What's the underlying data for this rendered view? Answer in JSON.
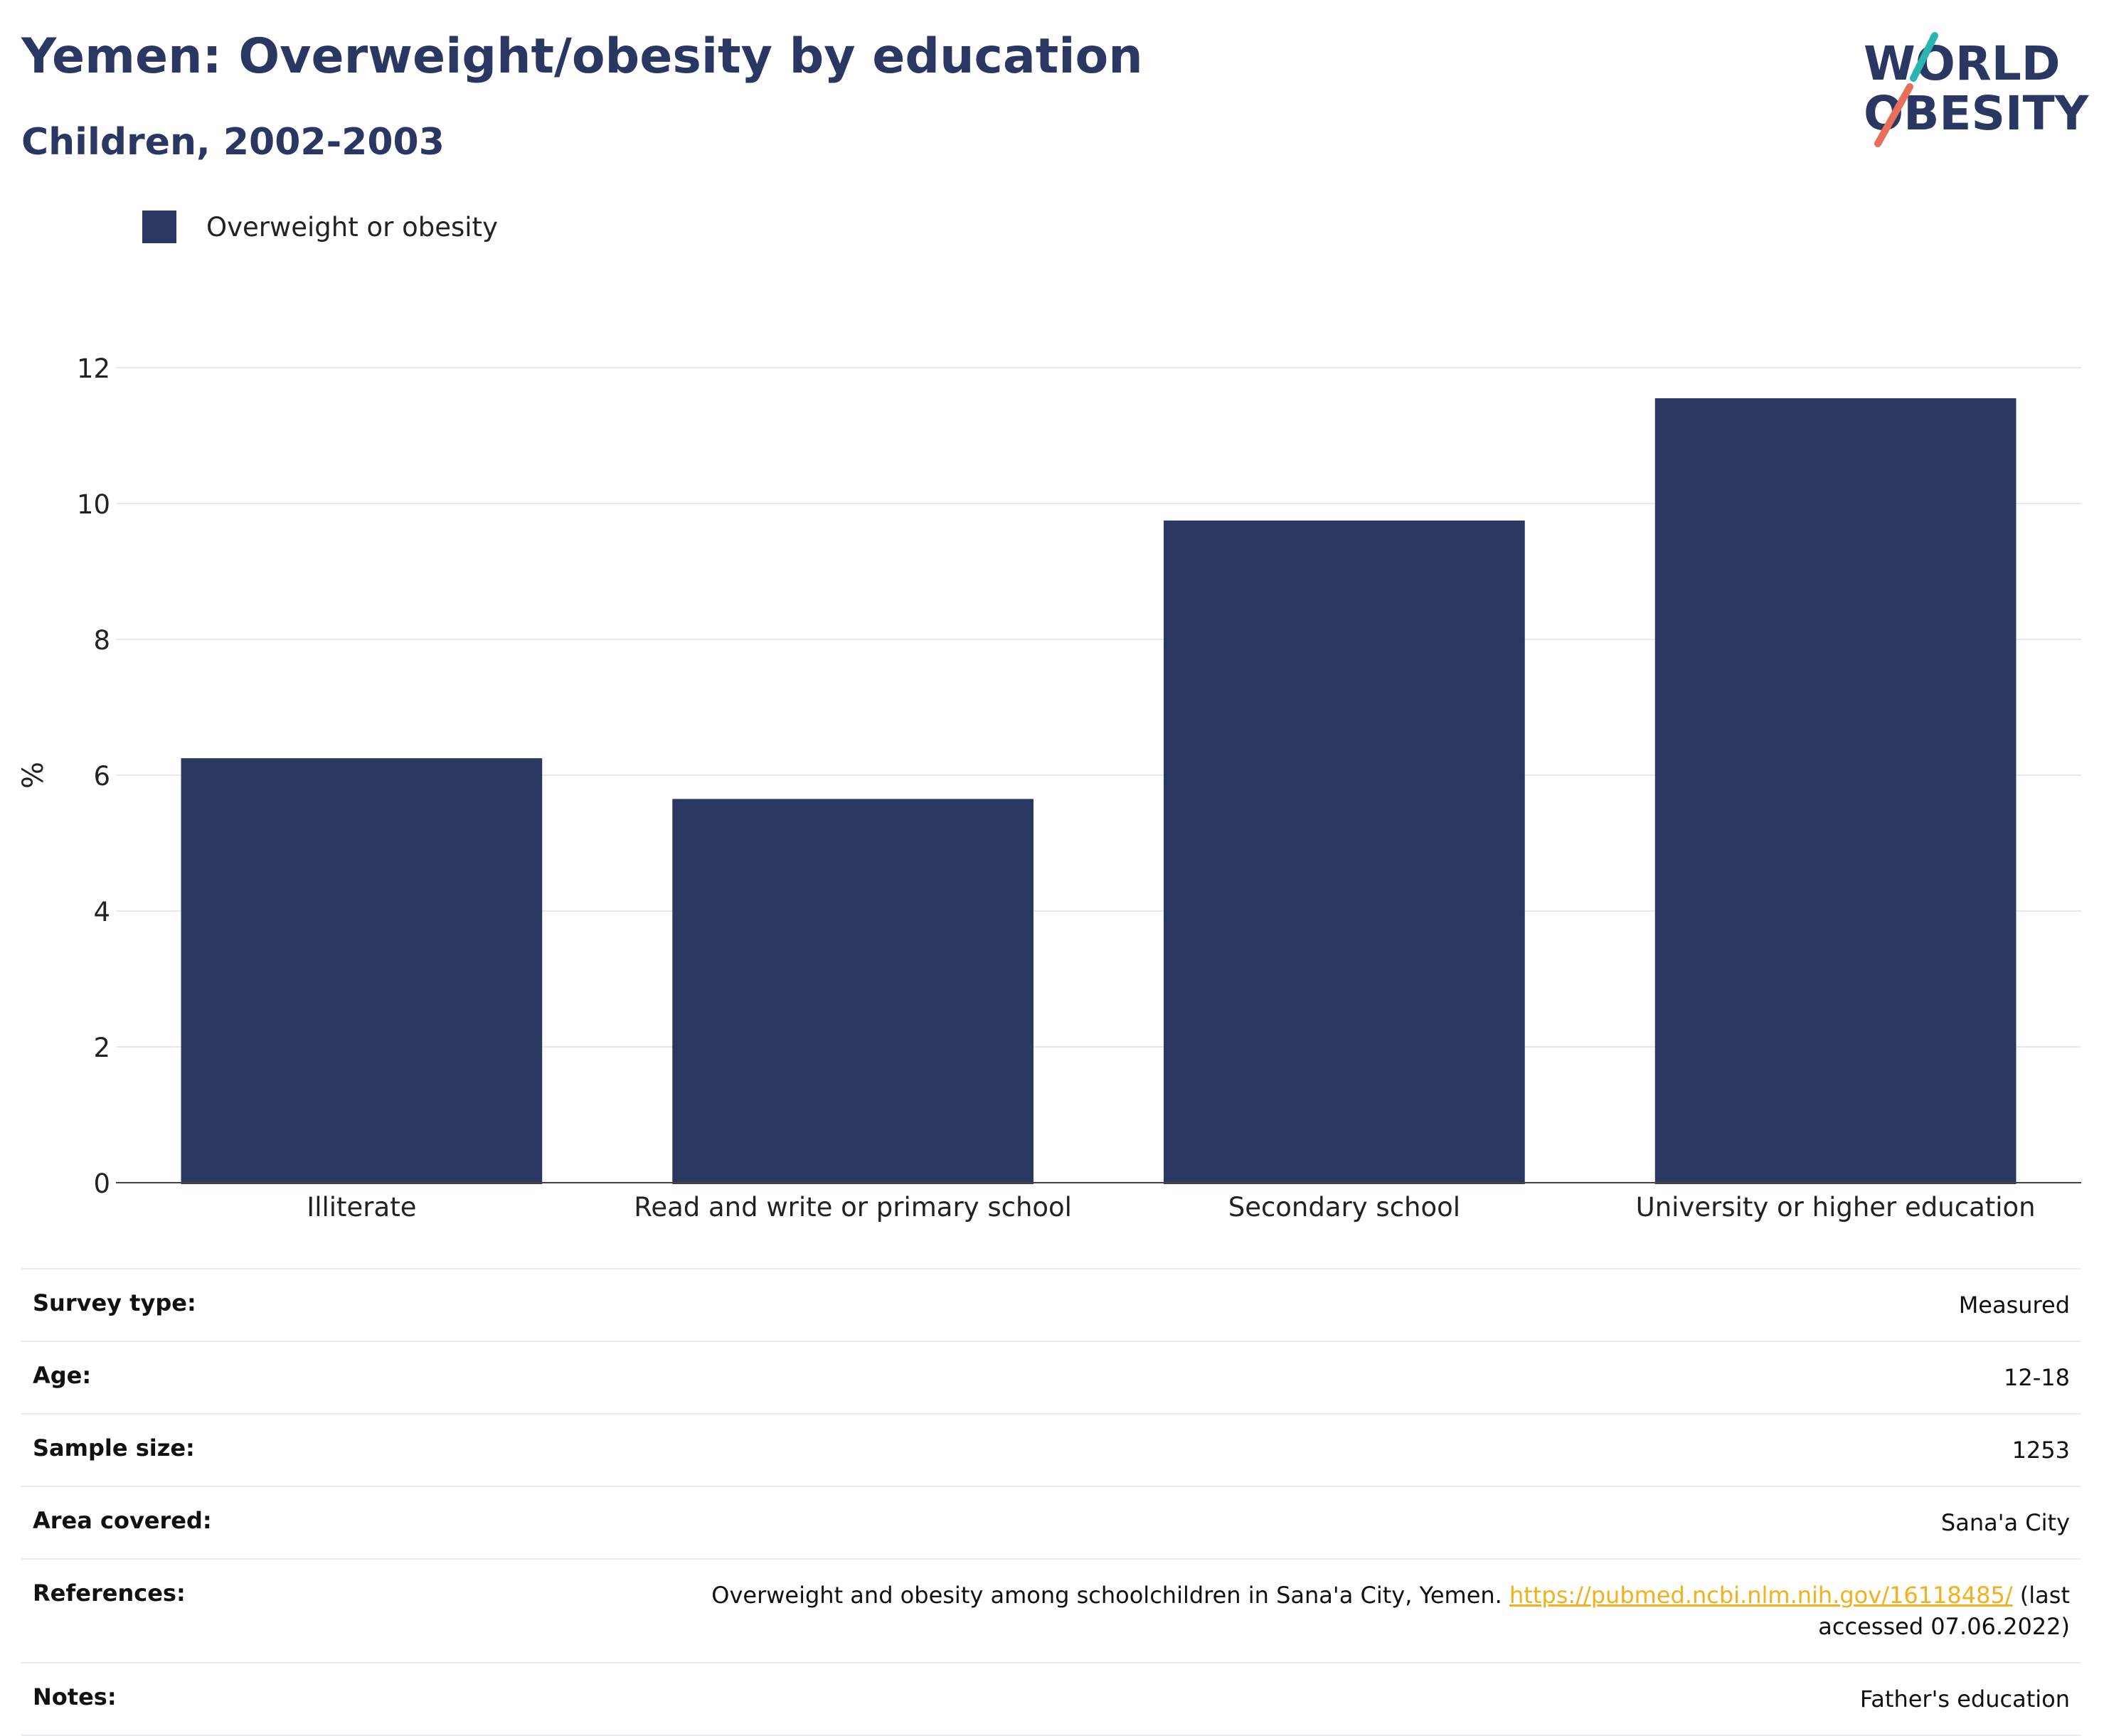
{
  "header": {
    "title": "Yemen: Overweight/obesity by education",
    "subtitle": "Children, 2002-2003"
  },
  "logo": {
    "line1": "WORLD",
    "line2": "OBESITY"
  },
  "colors": {
    "bar": "#2a3762",
    "logo_teal": "#2bb5b0",
    "logo_coral": "#e8705a",
    "link": "#f2b01e"
  },
  "chart_data": {
    "type": "bar",
    "categories": [
      "Illiterate",
      "Read and write or primary school",
      "Secondary school",
      "University or higher education"
    ],
    "series": [
      {
        "name": "Overweight or obesity",
        "values": [
          6.25,
          5.65,
          9.75,
          11.55
        ]
      }
    ],
    "title": "Yemen: Overweight/obesity by education",
    "subtitle": "Children, 2002-2003",
    "xlabel": "",
    "ylabel": "%",
    "ylim": [
      0,
      12
    ],
    "yticks": [
      0,
      2,
      4,
      6,
      8,
      10,
      12
    ],
    "grid": true,
    "legend": "top-left"
  },
  "info": {
    "survey_type": {
      "label": "Survey type:",
      "value": "Measured"
    },
    "age": {
      "label": "Age:",
      "value": "12-18"
    },
    "sample_size": {
      "label": "Sample size:",
      "value": "1253"
    },
    "area": {
      "label": "Area covered:",
      "value": "Sana'a City"
    },
    "references": {
      "label": "References:",
      "text": "Overweight and obesity among schoolchildren in Sana'a City, Yemen.",
      "link": "https://pubmed.ncbi.nlm.nih.gov/16118485/",
      "suffix": "(last accessed 07.06.2022)"
    },
    "notes": {
      "label": "Notes:",
      "value": "Father's education"
    }
  }
}
